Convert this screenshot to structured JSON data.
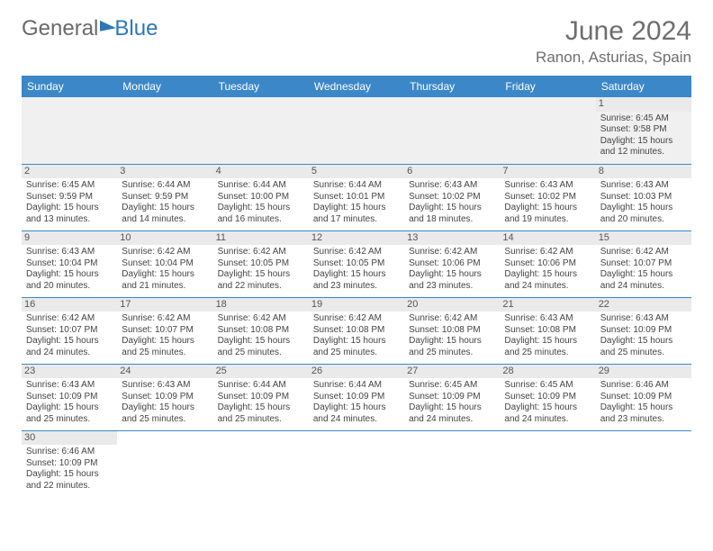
{
  "brand": {
    "part1": "General",
    "part2": "Blue"
  },
  "title": "June 2024",
  "location": "Ranon, Asturias, Spain",
  "colors": {
    "header_bg": "#3b87c8",
    "rule": "#3b87c8",
    "text": "#444444"
  },
  "weekdays": [
    "Sunday",
    "Monday",
    "Tuesday",
    "Wednesday",
    "Thursday",
    "Friday",
    "Saturday"
  ],
  "weeks": [
    [
      null,
      null,
      null,
      null,
      null,
      null,
      {
        "n": "1",
        "sr": "Sunrise: 6:45 AM",
        "ss": "Sunset: 9:58 PM",
        "dl": "Daylight: 15 hours and 12 minutes."
      }
    ],
    [
      {
        "n": "2",
        "sr": "Sunrise: 6:45 AM",
        "ss": "Sunset: 9:59 PM",
        "dl": "Daylight: 15 hours and 13 minutes."
      },
      {
        "n": "3",
        "sr": "Sunrise: 6:44 AM",
        "ss": "Sunset: 9:59 PM",
        "dl": "Daylight: 15 hours and 14 minutes."
      },
      {
        "n": "4",
        "sr": "Sunrise: 6:44 AM",
        "ss": "Sunset: 10:00 PM",
        "dl": "Daylight: 15 hours and 16 minutes."
      },
      {
        "n": "5",
        "sr": "Sunrise: 6:44 AM",
        "ss": "Sunset: 10:01 PM",
        "dl": "Daylight: 15 hours and 17 minutes."
      },
      {
        "n": "6",
        "sr": "Sunrise: 6:43 AM",
        "ss": "Sunset: 10:02 PM",
        "dl": "Daylight: 15 hours and 18 minutes."
      },
      {
        "n": "7",
        "sr": "Sunrise: 6:43 AM",
        "ss": "Sunset: 10:02 PM",
        "dl": "Daylight: 15 hours and 19 minutes."
      },
      {
        "n": "8",
        "sr": "Sunrise: 6:43 AM",
        "ss": "Sunset: 10:03 PM",
        "dl": "Daylight: 15 hours and 20 minutes."
      }
    ],
    [
      {
        "n": "9",
        "sr": "Sunrise: 6:43 AM",
        "ss": "Sunset: 10:04 PM",
        "dl": "Daylight: 15 hours and 20 minutes."
      },
      {
        "n": "10",
        "sr": "Sunrise: 6:42 AM",
        "ss": "Sunset: 10:04 PM",
        "dl": "Daylight: 15 hours and 21 minutes."
      },
      {
        "n": "11",
        "sr": "Sunrise: 6:42 AM",
        "ss": "Sunset: 10:05 PM",
        "dl": "Daylight: 15 hours and 22 minutes."
      },
      {
        "n": "12",
        "sr": "Sunrise: 6:42 AM",
        "ss": "Sunset: 10:05 PM",
        "dl": "Daylight: 15 hours and 23 minutes."
      },
      {
        "n": "13",
        "sr": "Sunrise: 6:42 AM",
        "ss": "Sunset: 10:06 PM",
        "dl": "Daylight: 15 hours and 23 minutes."
      },
      {
        "n": "14",
        "sr": "Sunrise: 6:42 AM",
        "ss": "Sunset: 10:06 PM",
        "dl": "Daylight: 15 hours and 24 minutes."
      },
      {
        "n": "15",
        "sr": "Sunrise: 6:42 AM",
        "ss": "Sunset: 10:07 PM",
        "dl": "Daylight: 15 hours and 24 minutes."
      }
    ],
    [
      {
        "n": "16",
        "sr": "Sunrise: 6:42 AM",
        "ss": "Sunset: 10:07 PM",
        "dl": "Daylight: 15 hours and 24 minutes."
      },
      {
        "n": "17",
        "sr": "Sunrise: 6:42 AM",
        "ss": "Sunset: 10:07 PM",
        "dl": "Daylight: 15 hours and 25 minutes."
      },
      {
        "n": "18",
        "sr": "Sunrise: 6:42 AM",
        "ss": "Sunset: 10:08 PM",
        "dl": "Daylight: 15 hours and 25 minutes."
      },
      {
        "n": "19",
        "sr": "Sunrise: 6:42 AM",
        "ss": "Sunset: 10:08 PM",
        "dl": "Daylight: 15 hours and 25 minutes."
      },
      {
        "n": "20",
        "sr": "Sunrise: 6:42 AM",
        "ss": "Sunset: 10:08 PM",
        "dl": "Daylight: 15 hours and 25 minutes."
      },
      {
        "n": "21",
        "sr": "Sunrise: 6:43 AM",
        "ss": "Sunset: 10:08 PM",
        "dl": "Daylight: 15 hours and 25 minutes."
      },
      {
        "n": "22",
        "sr": "Sunrise: 6:43 AM",
        "ss": "Sunset: 10:09 PM",
        "dl": "Daylight: 15 hours and 25 minutes."
      }
    ],
    [
      {
        "n": "23",
        "sr": "Sunrise: 6:43 AM",
        "ss": "Sunset: 10:09 PM",
        "dl": "Daylight: 15 hours and 25 minutes."
      },
      {
        "n": "24",
        "sr": "Sunrise: 6:43 AM",
        "ss": "Sunset: 10:09 PM",
        "dl": "Daylight: 15 hours and 25 minutes."
      },
      {
        "n": "25",
        "sr": "Sunrise: 6:44 AM",
        "ss": "Sunset: 10:09 PM",
        "dl": "Daylight: 15 hours and 25 minutes."
      },
      {
        "n": "26",
        "sr": "Sunrise: 6:44 AM",
        "ss": "Sunset: 10:09 PM",
        "dl": "Daylight: 15 hours and 24 minutes."
      },
      {
        "n": "27",
        "sr": "Sunrise: 6:45 AM",
        "ss": "Sunset: 10:09 PM",
        "dl": "Daylight: 15 hours and 24 minutes."
      },
      {
        "n": "28",
        "sr": "Sunrise: 6:45 AM",
        "ss": "Sunset: 10:09 PM",
        "dl": "Daylight: 15 hours and 24 minutes."
      },
      {
        "n": "29",
        "sr": "Sunrise: 6:46 AM",
        "ss": "Sunset: 10:09 PM",
        "dl": "Daylight: 15 hours and 23 minutes."
      }
    ],
    [
      {
        "n": "30",
        "sr": "Sunrise: 6:46 AM",
        "ss": "Sunset: 10:09 PM",
        "dl": "Daylight: 15 hours and 22 minutes."
      },
      null,
      null,
      null,
      null,
      null,
      null
    ]
  ]
}
